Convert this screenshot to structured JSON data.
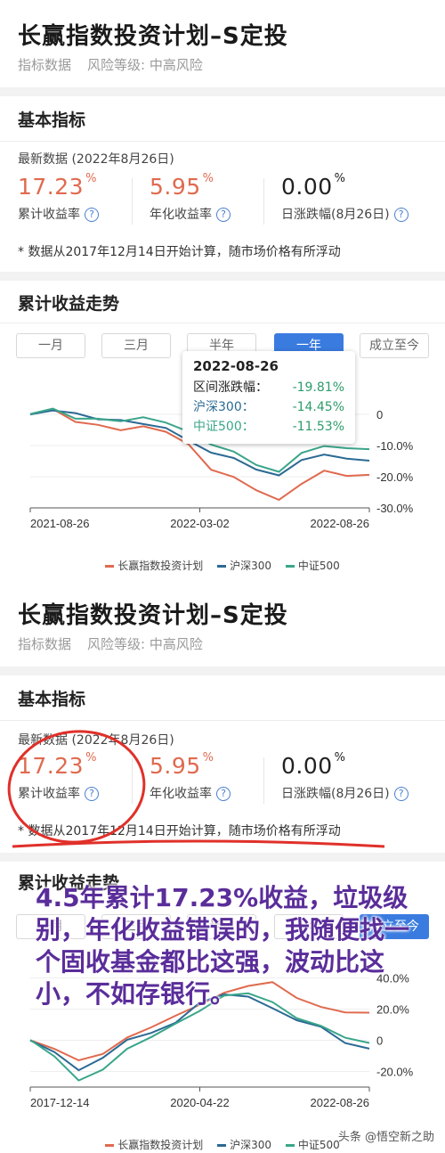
{
  "panel1": {
    "title": "长赢指数投资计划–S定投",
    "sub1": "指标数据",
    "sub2": "风险等级: 中高风险",
    "section_basic": "基本指标",
    "latest": "最新数据 (2022年8月26日)",
    "m1_val": "17.23",
    "m1_lab": "累计收益率",
    "m2_val": "5.95",
    "m2_lab": "年化收益率",
    "m3_val": "0.00",
    "m3_lab": "日涨跌幅(8月26日)",
    "pct": "%",
    "note": "* 数据从2017年12月14日开始计算，随市场价格有所浮动",
    "section_trend": "累计收益走势",
    "tabs": [
      "一月",
      "三月",
      "半年",
      "一年",
      "成立至今"
    ],
    "x_labels": [
      "2021-08-26",
      "2022-03-02",
      "2022-08-26"
    ],
    "y_labels": [
      "0",
      "-10.0%",
      "-20.0%",
      "-30.0%"
    ],
    "tooltip": {
      "date": "2022-08-26",
      "r1_label": "区间涨跌幅：",
      "r1_val": "-19.81%",
      "r2_label": "沪深300：",
      "r2_val": "-14.45%",
      "r3_label": "中证500：",
      "r3_val": "-11.53%"
    }
  },
  "panel2": {
    "title": "长赢指数投资计划–S定投",
    "sub1": "指标数据",
    "sub2": "风险等级: 中高风险",
    "section_basic": "基本指标",
    "latest": "最新数据 (2022年8月26日)",
    "m1_val": "17.23",
    "m1_lab": "累计收益率",
    "m2_val": "5.95",
    "m2_lab": "年化收益率",
    "m3_val": "0.00",
    "m3_lab": "日涨跌幅(8月26日)",
    "pct": "%",
    "note": "* 数据从2017年12月14日开始计算，随市场价格有所浮动",
    "section_trend": "累计收益走势",
    "tabs": [
      "一月",
      "三月",
      "半年",
      "一年",
      "成立至今"
    ],
    "x_labels": [
      "2017-12-14",
      "2020-04-22",
      "2022-08-26"
    ],
    "y_labels": [
      "40.0%",
      "20.0%",
      "0",
      "-20.0%"
    ]
  },
  "legend": {
    "s1": "长赢指数投资计划",
    "s2": "沪深300",
    "s3": "中证500"
  },
  "colors": {
    "s1": "#e06a4f",
    "s2": "#2b6a94",
    "s3": "#3aa58a",
    "accent": "#3a7be0",
    "circle": "#e0302a",
    "overlay": "#5a2d9a"
  },
  "overlay_text": "4.5年累计17.23%收益，垃圾级别，年化收益错误的，我随便找一个固收基金都比这强，波动比这小，不如存银行。",
  "watermark": "头条 @悟空新之助",
  "chart_data": [
    {
      "type": "line",
      "xlabels": [
        "2021-08-26",
        "2022-03-02",
        "2022-08-26"
      ],
      "ylim": [
        -30,
        10
      ],
      "series": [
        {
          "name": "长赢指数投资计划",
          "values": [
            0,
            2,
            -2,
            -3,
            -5,
            -4,
            -6,
            -10,
            -18,
            -20,
            -24,
            -27,
            -22,
            -18,
            -20,
            -19.81
          ]
        },
        {
          "name": "沪深300",
          "values": [
            0,
            1,
            0,
            -2,
            -2,
            -3,
            -4,
            -8,
            -12,
            -14,
            -18,
            -20,
            -15,
            -13,
            -14,
            -14.45
          ]
        },
        {
          "name": "中证500",
          "values": [
            0,
            2,
            -1,
            -1,
            -2,
            -1,
            -3,
            -6,
            -10,
            -12,
            -16,
            -18,
            -12,
            -10,
            -11,
            -11.53
          ]
        }
      ]
    },
    {
      "type": "line",
      "xlabels": [
        "2017-12-14",
        "2020-04-22",
        "2022-08-26"
      ],
      "ylim": [
        -30,
        50
      ],
      "series": [
        {
          "name": "长赢指数投资计划",
          "values": [
            0,
            -5,
            -12,
            -8,
            2,
            8,
            15,
            22,
            30,
            35,
            38,
            28,
            22,
            18,
            17.23
          ]
        },
        {
          "name": "沪深300",
          "values": [
            0,
            -8,
            -20,
            -12,
            0,
            5,
            12,
            25,
            30,
            28,
            20,
            12,
            8,
            -2,
            -5
          ]
        },
        {
          "name": "中证500",
          "values": [
            0,
            -10,
            -25,
            -18,
            -5,
            2,
            10,
            18,
            28,
            30,
            25,
            15,
            10,
            2,
            -2
          ]
        }
      ]
    }
  ]
}
